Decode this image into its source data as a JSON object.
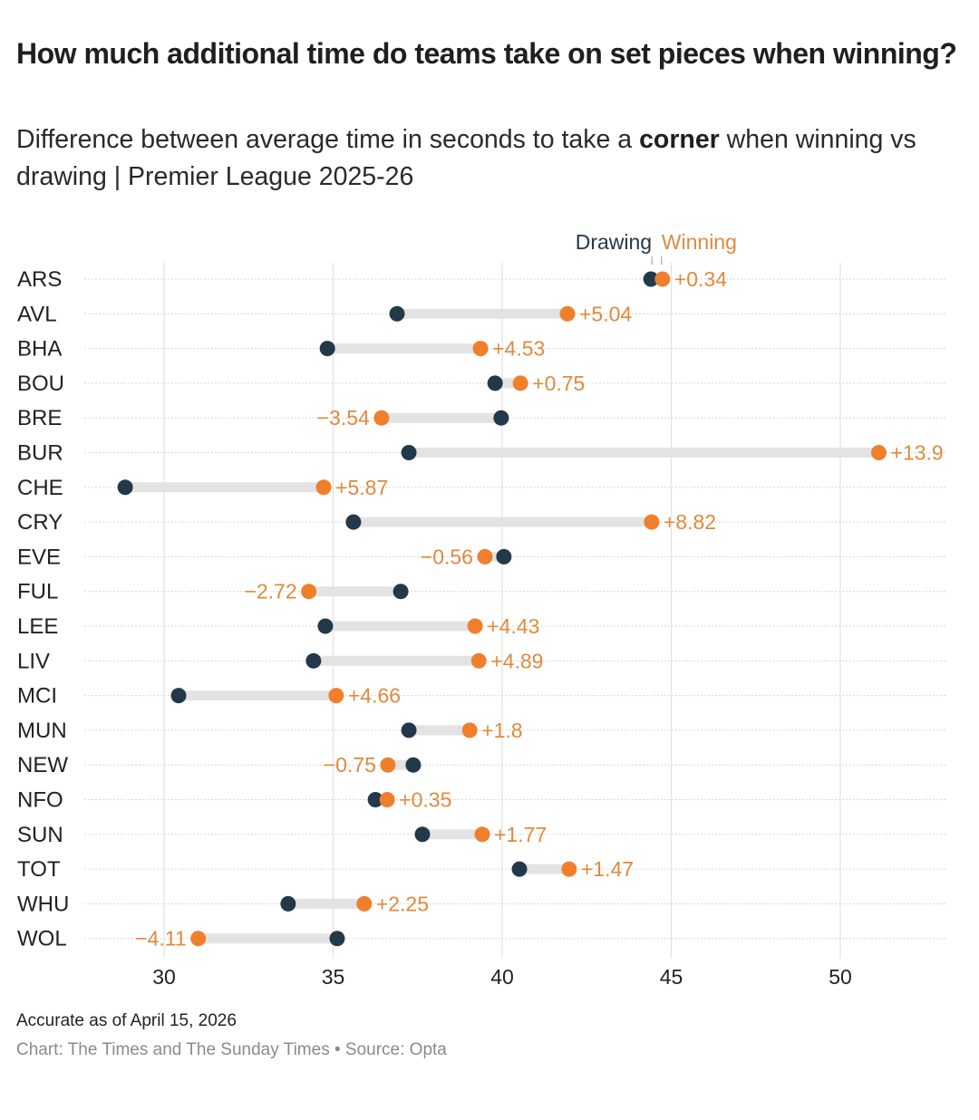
{
  "header": {
    "title": "How much additional time do teams take on set pieces when winning?",
    "subtitle_pre": "Difference between average time in seconds to take a ",
    "subtitle_bold": "corner",
    "subtitle_post": " when winning vs drawing | Premier League 2025-26"
  },
  "footer": {
    "note": "Accurate as of April 15, 2026",
    "source": "Chart: The Times and The Sunday Times • Source: Opta"
  },
  "colors": {
    "drawing": "#22394a",
    "winning": "#f07f2c",
    "winning_label": "#e08a3c",
    "connector": "#e3e3e3",
    "gridline": "#e2e2e2",
    "rowline": "#d6d6d6",
    "text": "#222222"
  },
  "chart_data": {
    "type": "dumbbell",
    "title": "How much additional time do teams take on set pieces when winning?",
    "subtitle": "Difference between average time in seconds to take a corner when winning vs drawing | Premier League 2025-26",
    "xlabel": "",
    "ylabel": "",
    "xlim": [
      28,
      53
    ],
    "xticks": [
      30,
      35,
      40,
      45,
      50
    ],
    "grid": true,
    "legend": {
      "position": "top-right",
      "entries": [
        "Drawing",
        "Winning"
      ]
    },
    "categories": [
      "ARS",
      "AVL",
      "BHA",
      "BOU",
      "BRE",
      "BUR",
      "CHE",
      "CRY",
      "EVE",
      "FUL",
      "LEE",
      "LIV",
      "MCI",
      "MUN",
      "NEW",
      "NFO",
      "SUN",
      "TOT",
      "WHU",
      "WOL"
    ],
    "series": [
      {
        "name": "Drawing",
        "values": [
          44.4,
          36.89,
          34.83,
          39.79,
          39.97,
          37.24,
          28.85,
          35.6,
          40.05,
          37.0,
          34.77,
          34.42,
          30.43,
          37.24,
          37.37,
          36.25,
          37.64,
          40.51,
          33.67,
          35.12
        ]
      },
      {
        "name": "Winning",
        "values": [
          44.74,
          41.93,
          39.36,
          40.54,
          36.43,
          51.14,
          34.72,
          44.42,
          39.49,
          34.28,
          39.2,
          39.31,
          35.09,
          39.04,
          36.62,
          36.6,
          39.41,
          41.98,
          35.92,
          31.01
        ]
      }
    ],
    "difference_labels": [
      "+0.34",
      "+5.04",
      "+4.53",
      "+0.75",
      "−3.54",
      "+13.9",
      "+5.87",
      "+8.82",
      "−0.56",
      "−2.72",
      "+4.43",
      "+4.89",
      "+4.66",
      "+1.8",
      "−0.75",
      "+0.35",
      "+1.77",
      "+1.47",
      "+2.25",
      "−4.11"
    ]
  }
}
